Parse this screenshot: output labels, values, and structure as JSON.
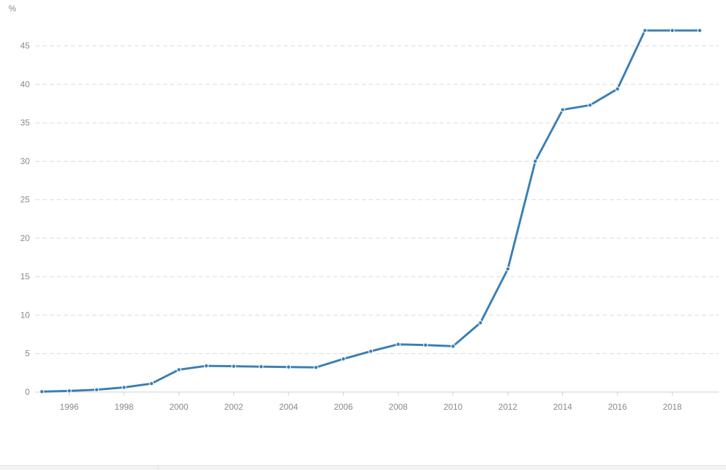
{
  "chart_data": {
    "type": "line",
    "title": "",
    "xlabel": "",
    "ylabel": "%",
    "ylim": [
      0,
      47
    ],
    "xlim": [
      1995,
      2019.7
    ],
    "yticks": [
      0,
      5,
      10,
      15,
      20,
      25,
      30,
      35,
      40,
      45
    ],
    "xticks": [
      1996,
      1998,
      2000,
      2002,
      2004,
      2006,
      2008,
      2010,
      2012,
      2014,
      2016,
      2018
    ],
    "grid": true,
    "legend": "none",
    "line_color": "#3a7fb4",
    "series": [
      {
        "x": [
          1995,
          1996,
          1997,
          1998,
          1999,
          2000,
          2001,
          2002,
          2003,
          2004,
          2005,
          2006,
          2007,
          2008,
          2009,
          2010,
          2011,
          2012,
          2013,
          2014,
          2015,
          2016,
          2017,
          2018,
          2019
        ],
        "values": [
          0.05,
          0.15,
          0.3,
          0.6,
          1.1,
          2.9,
          3.4,
          3.35,
          3.3,
          3.25,
          3.2,
          4.3,
          5.3,
          6.2,
          6.1,
          5.95,
          9.0,
          16.0,
          30.0,
          36.7,
          37.3,
          39.4,
          47.0,
          47.0,
          47.0
        ]
      }
    ]
  }
}
